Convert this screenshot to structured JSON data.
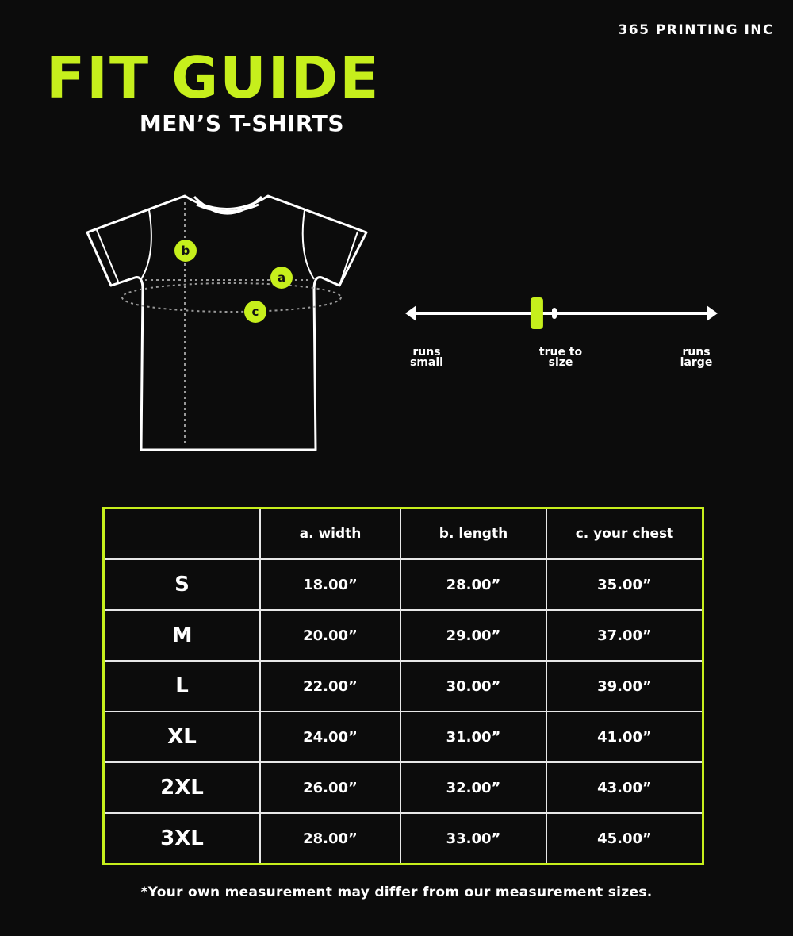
{
  "brand": "365 PRINTING INC",
  "title": "FIT GUIDE",
  "subtitle": "MEN’S T-SHIRTS",
  "colors": {
    "accent": "#c6ef1c",
    "background": "#0c0c0c",
    "line": "#ffffff"
  },
  "diagram": {
    "markers": [
      "a",
      "b",
      "c"
    ]
  },
  "fit_scale": {
    "labels": [
      "runs small",
      "true to size",
      "runs large"
    ],
    "position": 0.42
  },
  "table": {
    "headers": [
      "",
      "a. width",
      "b. length",
      "c. your chest"
    ],
    "rows": [
      [
        "S",
        "18.00”",
        "28.00”",
        "35.00”"
      ],
      [
        "M",
        "20.00”",
        "29.00”",
        "37.00”"
      ],
      [
        "L",
        "22.00”",
        "30.00”",
        "39.00”"
      ],
      [
        "XL",
        "24.00”",
        "31.00”",
        "41.00”"
      ],
      [
        "2XL",
        "26.00”",
        "32.00”",
        "43.00”"
      ],
      [
        "3XL",
        "28.00”",
        "33.00”",
        "45.00”"
      ]
    ]
  },
  "note": "*Your own measurement may differ from our measurement sizes."
}
